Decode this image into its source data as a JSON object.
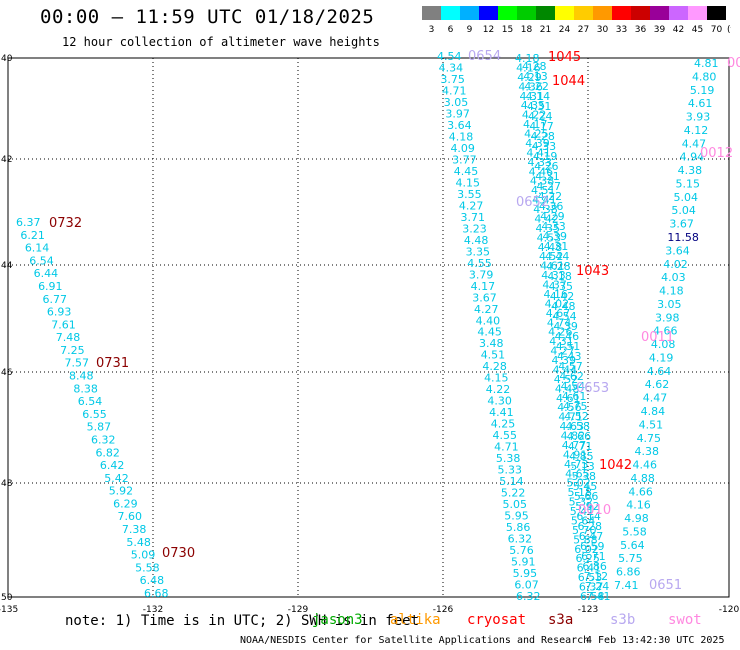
{
  "header": {
    "title": "00:00 — 11:59 UTC 01/18/2025",
    "subtitle": "12 hour collection of altimeter wave heights"
  },
  "colorbar": {
    "bins": [
      {
        "label": "3",
        "color": "#808080"
      },
      {
        "label": "6",
        "color": "#00ffff"
      },
      {
        "label": "9",
        "color": "#00b0ff"
      },
      {
        "label": "12",
        "color": "#0000ff"
      },
      {
        "label": "15",
        "color": "#00ff00"
      },
      {
        "label": "18",
        "color": "#00cc00"
      },
      {
        "label": "21",
        "color": "#008800"
      },
      {
        "label": "24",
        "color": "#ffff00"
      },
      {
        "label": "27",
        "color": "#ffcc00"
      },
      {
        "label": "30",
        "color": "#ff9900"
      },
      {
        "label": "33",
        "color": "#ff0000"
      },
      {
        "label": "36",
        "color": "#cc0000"
      },
      {
        "label": "39",
        "color": "#990099"
      },
      {
        "label": "42",
        "color": "#cc66ff"
      },
      {
        "label": "45",
        "color": "#ff99ff"
      },
      {
        "label": "70",
        "color": "#000000"
      }
    ],
    "unit": "(ft)"
  },
  "map": {
    "lon_ticks": [
      "-135",
      "-132",
      "-129",
      "-126",
      "-123",
      "-120"
    ],
    "lat_ticks": [
      "40",
      "42",
      "44",
      "46",
      "48",
      "50"
    ],
    "value_color": "#00c8e6"
  },
  "tracks": {
    "left": [
      "6.37",
      "6.21",
      "6.14",
      "6.54",
      "6.44",
      "6.91",
      "6.77",
      "6.93",
      "7.61",
      "7.48",
      "7.25",
      "7.57",
      "8.48",
      "8.38",
      "6.54",
      "6.55",
      "5.87",
      "6.32",
      "6.82",
      "6.42",
      "5.42",
      "5.92",
      "6.29",
      "7.60",
      "7.38",
      "5.48",
      "5.09",
      "5.58",
      "6.48",
      "6.68"
    ],
    "a": [
      "4.54",
      "4.34",
      "3.75",
      "4.71",
      "3.05",
      "3.97",
      "3.64",
      "4.18",
      "4.09",
      "3.77",
      "4.45",
      "4.15",
      "3.55",
      "4.27",
      "3.71",
      "3.23",
      "4.48",
      "3.35",
      "4.55",
      "3.79",
      "4.17",
      "3.67",
      "4.27",
      "4.40",
      "4.45",
      "3.48",
      "4.51",
      "4.28",
      "4.15",
      "4.22",
      "4.30",
      "4.41",
      "4.25",
      "4.55",
      "4.71",
      "5.38",
      "5.33",
      "5.14",
      "5.22",
      "5.05",
      "5.95",
      "5.86",
      "6.32",
      "5.76",
      "5.91",
      "5.95",
      "6.07",
      "6.32"
    ],
    "b": [
      "4.18",
      "4.16",
      "4.29",
      "4.36",
      "4.31",
      "4.35",
      "4.22",
      "4.17",
      "4.25",
      "4.39",
      "4.41",
      "4.33",
      "4.46",
      "4.38",
      "4.51",
      "4.41",
      "4.38",
      "4.42",
      "4.35",
      "4.53",
      "4.48",
      "4.52",
      "4.61",
      "4.33",
      "4.37",
      "4.16",
      "4.02",
      "4.67",
      "4.74",
      "4.26",
      "4.31",
      "4.27",
      "4.39",
      "4.44",
      "4.52",
      "4.48",
      "4.61",
      "4.56",
      "4.71",
      "4.63",
      "4.82",
      "4.77",
      "4.91",
      "4.73",
      "4.65",
      "5.02",
      "5.18",
      "5.32",
      "5.41",
      "5.64",
      "5.70",
      "5.88",
      "6.02",
      "6.25",
      "6.41",
      "6.53",
      "6.37",
      "6.58"
    ],
    "c": [
      "4.28",
      "4.13",
      "4.22",
      "4.14",
      "4.31",
      "4.24",
      "4.17",
      "4.28",
      "4.33",
      "4.19",
      "4.26",
      "4.31",
      "4.27",
      "4.22",
      "4.36",
      "4.29",
      "4.33",
      "4.39",
      "4.31",
      "4.44",
      "4.28",
      "4.18",
      "4.35",
      "4.42",
      "4.48",
      "4.54",
      "4.39",
      "4.46",
      "4.51",
      "4.43",
      "4.57",
      "4.62",
      "4.54",
      "4.61",
      "4.75",
      "4.52",
      "4.58",
      "4.66",
      "4.71",
      "4.85",
      "5.13",
      "5.38",
      "5.45",
      "5.66",
      "5.92",
      "6.14",
      "6.28",
      "6.47",
      "6.59",
      "6.71",
      "6.86",
      "7.12",
      "7.24",
      "7.41"
    ],
    "d": [
      "4.81",
      "4.80",
      "5.19",
      "4.61",
      "3.93",
      "4.12",
      "4.47",
      "4.94",
      "4.38",
      "5.15",
      "5.04",
      "5.04",
      "3.67",
      "11.58",
      "3.64",
      "4.02",
      "4.03",
      "4.18",
      "3.05",
      "3.98",
      "4.66",
      "4.08",
      "4.19",
      "4.64",
      "4.62",
      "4.47",
      "4.84",
      "4.51",
      "4.75",
      "4.38",
      "4.46",
      "4.88",
      "4.66",
      "4.16",
      "4.98",
      "5.58",
      "5.64",
      "5.75",
      "6.86",
      "7.41"
    ],
    "special": {
      "value": "11.58",
      "color": "#000080"
    }
  },
  "passes": [
    {
      "id": "0732",
      "color": "#8b0000"
    },
    {
      "id": "0731",
      "color": "#8b0000"
    },
    {
      "id": "0730",
      "color": "#8b0000"
    },
    {
      "id": "0654",
      "color": "#b8a8f0"
    },
    {
      "id": "1045",
      "color": "#ff0000"
    },
    {
      "id": "1044",
      "color": "#ff0000"
    },
    {
      "id": "0652",
      "color": "#b8a8f0"
    },
    {
      "id": "1043",
      "color": "#ff0000"
    },
    {
      "id": "0653",
      "color": "#b8a8f0"
    },
    {
      "id": "1042",
      "color": "#ff0000"
    },
    {
      "id": "0010",
      "color": "#ff88e0"
    },
    {
      "id": "0012",
      "color": "#ff88e0"
    },
    {
      "id": "0011",
      "color": "#ff88e0"
    },
    {
      "id": "0651",
      "color": "#b8a8f0"
    },
    {
      "id": "00",
      "color": "#ff88e0"
    }
  ],
  "footer": {
    "note_prefix": "note: 1) Time is in UTC; 2) SWH is in feet",
    "satellites": [
      {
        "name": "jason3",
        "color": "#00aa00"
      },
      {
        "name": "altika",
        "color": "#ff9900"
      },
      {
        "name": "cryosat",
        "color": "#ff0000"
      },
      {
        "name": "s3a",
        "color": "#8b0000"
      },
      {
        "name": "s3b",
        "color": "#b8a8f0"
      },
      {
        "name": "swot",
        "color": "#ff88e0"
      }
    ],
    "credit": "NOAA/NESDIS Center for Satellite Applications and Research",
    "timestamp": "4 Feb 13:42:30 UTC 2025"
  }
}
